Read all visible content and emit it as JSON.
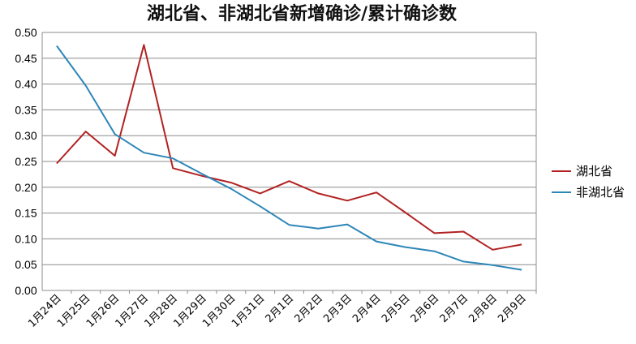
{
  "chart_data": {
    "type": "line",
    "title": "湖北省、非湖北省新增确诊/累计确诊数",
    "xlabel": "",
    "ylabel": "",
    "categories": [
      "1月24日",
      "1月25日",
      "1月26日",
      "1月27日",
      "1月28日",
      "1月29日",
      "1月30日",
      "1月31日",
      "2月1日",
      "2月2日",
      "2月3日",
      "2月4日",
      "2月5日",
      "2月6日",
      "2月7日",
      "2月8日",
      "2月9日"
    ],
    "ylim": [
      0,
      0.5
    ],
    "yticks": [
      "0.00",
      "0.05",
      "0.10",
      "0.15",
      "0.20",
      "0.25",
      "0.30",
      "0.35",
      "0.40",
      "0.45",
      "0.50"
    ],
    "grid": true,
    "legend_position": "right",
    "series": [
      {
        "name": "湖北省",
        "color": "#b22222",
        "values": [
          0.246,
          0.308,
          0.261,
          0.476,
          0.237,
          0.222,
          0.209,
          0.188,
          0.212,
          0.188,
          0.174,
          0.19,
          0.151,
          0.111,
          0.114,
          0.079,
          0.089
        ]
      },
      {
        "name": "非湖北省",
        "color": "#2e86b8",
        "values": [
          0.474,
          0.397,
          0.303,
          0.267,
          0.256,
          0.226,
          0.197,
          0.163,
          0.127,
          0.12,
          0.128,
          0.095,
          0.084,
          0.076,
          0.056,
          0.049,
          0.04
        ]
      }
    ]
  }
}
